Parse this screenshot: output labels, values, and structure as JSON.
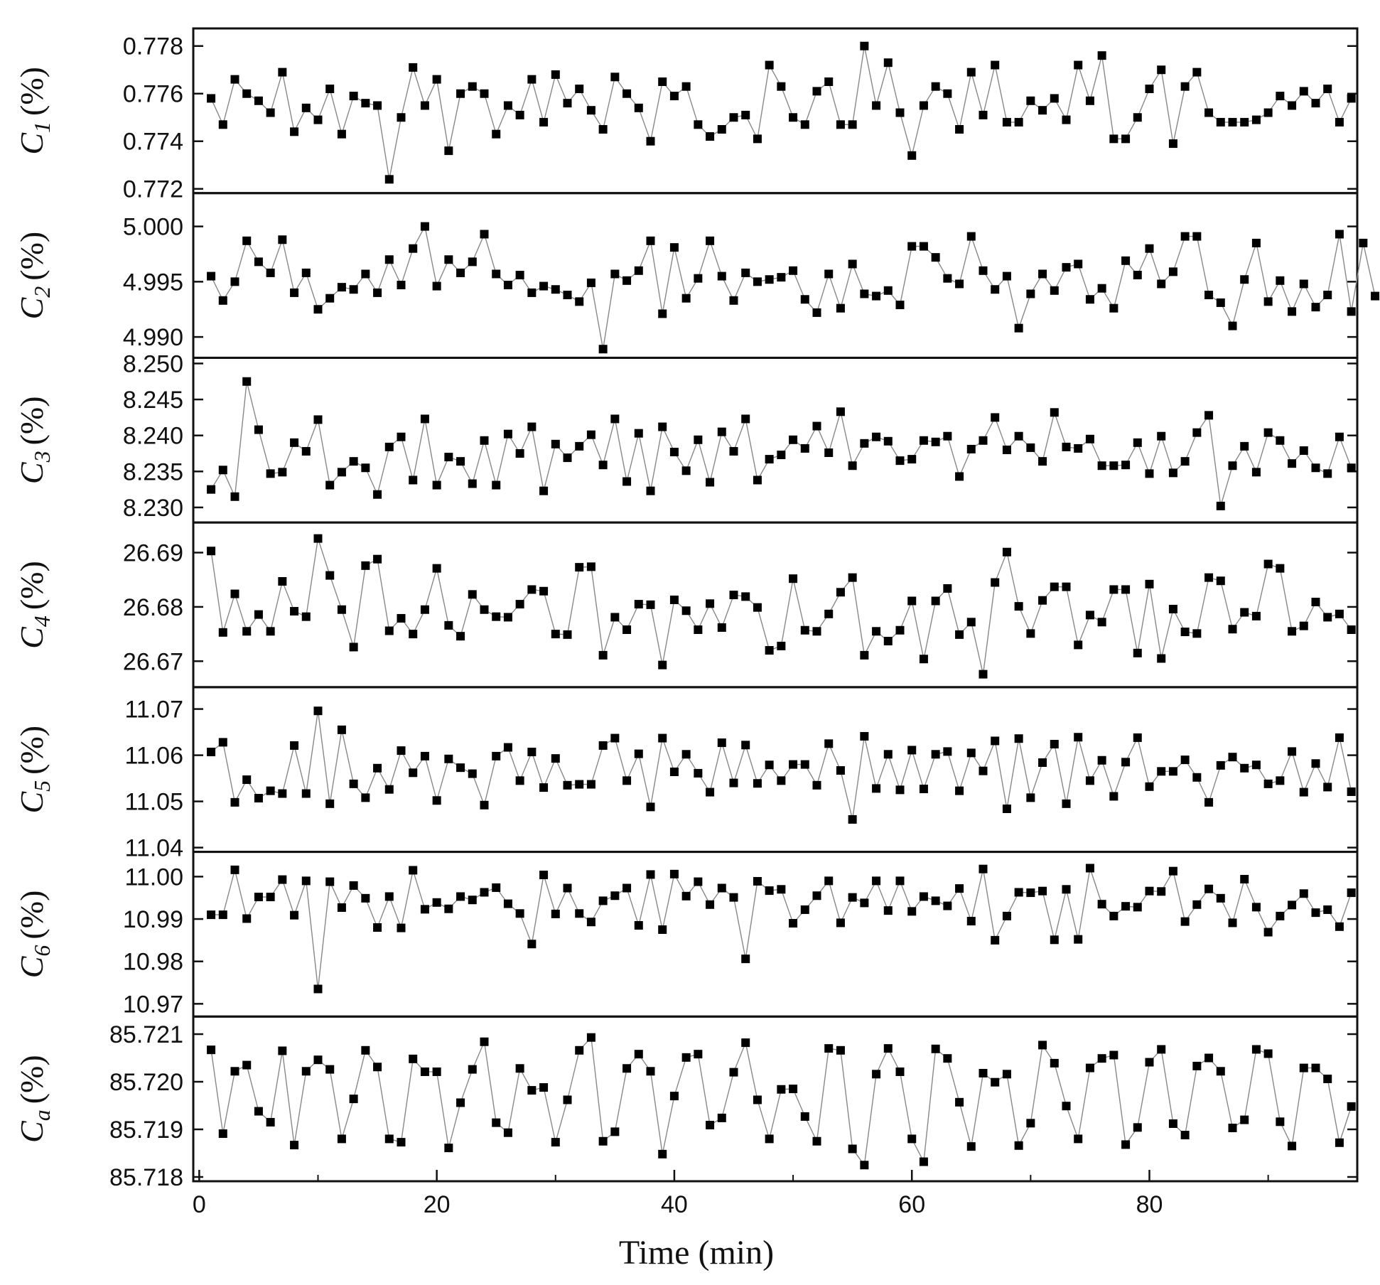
{
  "chart_data": [
    {
      "type": "scatter",
      "ylabel_symbol": "C",
      "ylabel_sub": "1",
      "ylabel_unit": "(%)",
      "ylim": [
        0.772,
        0.7785
      ],
      "yticks": [
        0.772,
        0.774,
        0.776,
        0.778
      ],
      "ytick_labels": [
        "0.772",
        "0.774",
        "0.776",
        "0.778"
      ],
      "y": [
        0.7758,
        0.7747,
        0.7766,
        0.776,
        0.7757,
        0.7752,
        0.7769,
        0.7744,
        0.7754,
        0.7749,
        0.7762,
        0.7743,
        0.7759,
        0.7756,
        0.7755,
        0.7724,
        0.775,
        0.7771,
        0.7755,
        0.7766,
        0.7736,
        0.776,
        0.7763,
        0.776,
        0.7743,
        0.7755,
        0.7751,
        0.7766,
        0.7748,
        0.7768,
        0.7756,
        0.7762,
        0.7753,
        0.7745,
        0.7767,
        0.776,
        0.7754,
        0.774,
        0.7765,
        0.7759,
        0.7763,
        0.7747,
        0.7742,
        0.7745,
        0.775,
        0.7751,
        0.7741,
        0.7772,
        0.7763,
        0.775,
        0.7747,
        0.7761,
        0.7765,
        0.7747,
        0.7747,
        0.778,
        0.7755,
        0.7773,
        0.7752,
        0.7734,
        0.7755,
        0.7763,
        0.776,
        0.7745,
        0.7769,
        0.7751,
        0.7772,
        0.7748,
        0.7748,
        0.7757,
        0.7753,
        0.7758,
        0.7749,
        0.7772,
        0.7757,
        0.7776,
        0.7741,
        0.7741,
        0.775,
        0.7762,
        0.777,
        0.7739,
        0.7763,
        0.7769,
        0.7752,
        0.7748,
        0.7748,
        0.7748,
        0.7749,
        0.7752,
        0.7759,
        0.7755,
        0.7761,
        0.7756,
        0.7762,
        0.7748,
        0.7758
      ]
    },
    {
      "type": "scatter",
      "ylabel_symbol": "C",
      "ylabel_sub": "2",
      "ylabel_unit": "(%)",
      "ylim": [
        4.9885,
        5.0025
      ],
      "yticks": [
        4.99,
        4.995,
        5.0
      ],
      "ytick_labels": [
        "4.990",
        "4.995",
        "5.000"
      ],
      "y": [
        4.9955,
        4.9933,
        4.995,
        4.9987,
        4.9968,
        4.9958,
        4.9988,
        4.994,
        4.9958,
        4.9925,
        4.9935,
        4.9945,
        4.9943,
        4.9957,
        4.994,
        4.997,
        4.9947,
        4.998,
        5.0,
        4.9946,
        4.997,
        4.9958,
        4.9968,
        4.9993,
        4.9957,
        4.9947,
        4.9956,
        4.994,
        4.9946,
        4.9943,
        4.9938,
        4.9932,
        4.9949,
        4.9889,
        4.9957,
        4.9951,
        4.996,
        4.9987,
        4.9921,
        4.9981,
        4.9935,
        4.9953,
        4.9987,
        4.9955,
        4.9933,
        4.9958,
        4.995,
        4.9952,
        4.9954,
        4.996,
        4.9934,
        4.9922,
        4.9957,
        4.9926,
        4.9966,
        4.9939,
        4.9937,
        4.9942,
        4.9929,
        4.9982,
        4.9982,
        4.9972,
        4.9953,
        4.9948,
        4.9991,
        4.996,
        4.9943,
        4.9955,
        4.9908,
        4.9939,
        4.9957,
        4.9942,
        4.9963,
        4.9966,
        4.9934,
        4.9944,
        4.9926,
        4.9969,
        4.9956,
        4.998,
        4.9948,
        4.9959,
        4.9991,
        4.9991,
        4.9938,
        4.9931,
        4.991,
        4.9952,
        4.9985,
        4.9932,
        4.9951,
        4.9923,
        4.9948,
        4.9927,
        4.9938,
        4.9993,
        4.9923,
        4.9985,
        4.9937
      ]
    },
    {
      "type": "scatter",
      "ylabel_symbol": "C",
      "ylabel_sub": "3",
      "ylabel_unit": "(%)",
      "ylim": [
        8.2285,
        8.25
      ],
      "yticks": [
        8.23,
        8.235,
        8.24,
        8.245,
        8.25
      ],
      "ytick_labels": [
        "8.230",
        "8.235",
        "8.240",
        "8.245",
        "8.250"
      ],
      "y": [
        8.2325,
        8.2352,
        8.2315,
        8.2475,
        8.2408,
        8.2347,
        8.2349,
        8.239,
        8.2378,
        8.2422,
        8.2331,
        8.2349,
        8.2364,
        8.2355,
        8.2318,
        8.2384,
        8.2398,
        8.2338,
        8.2423,
        8.2331,
        8.237,
        8.2364,
        8.2333,
        8.2393,
        8.2331,
        8.2402,
        8.2375,
        8.2412,
        8.2323,
        8.2388,
        8.2369,
        8.2385,
        8.2401,
        8.2359,
        8.2423,
        8.2336,
        8.2403,
        8.2323,
        8.2412,
        8.2377,
        8.2351,
        8.2394,
        8.2335,
        8.2405,
        8.2378,
        8.2423,
        8.2338,
        8.2367,
        8.2373,
        8.2394,
        8.2382,
        8.2413,
        8.2376,
        8.2433,
        8.2358,
        8.2389,
        8.2398,
        8.2392,
        8.2365,
        8.2367,
        8.2393,
        8.2391,
        8.2399,
        8.2343,
        8.2381,
        8.2393,
        8.2425,
        8.238,
        8.2399,
        8.2383,
        8.2364,
        8.2432,
        8.2384,
        8.2382,
        8.2395,
        8.2358,
        8.2358,
        8.2359,
        8.239,
        8.2347,
        8.2399,
        8.2348,
        8.2364,
        8.2404,
        8.2428,
        8.2302,
        8.2358,
        8.2385,
        8.2349,
        8.2404,
        8.2393,
        8.2361,
        8.2379,
        8.2355,
        8.2347,
        8.2398,
        8.2355
      ]
    },
    {
      "type": "scatter",
      "ylabel_symbol": "C",
      "ylabel_sub": "4",
      "ylabel_unit": "(%)",
      "ylim": [
        26.666,
        26.6945
      ],
      "yticks": [
        26.67,
        26.68,
        26.69
      ],
      "ytick_labels": [
        "26.67",
        "26.68",
        "26.69"
      ],
      "y": [
        26.6903,
        26.6753,
        26.6824,
        26.6755,
        26.6786,
        26.6755,
        26.6847,
        26.6792,
        26.6782,
        26.6926,
        26.6858,
        26.6795,
        26.6726,
        26.6876,
        26.6888,
        26.6756,
        26.6779,
        26.675,
        26.6795,
        26.6871,
        26.6766,
        26.6746,
        26.6823,
        26.6795,
        26.6782,
        26.6781,
        26.6805,
        26.6832,
        26.6829,
        26.675,
        26.6749,
        26.6873,
        26.6874,
        26.6711,
        26.6781,
        26.6758,
        26.6805,
        26.6804,
        26.6693,
        26.6813,
        26.6793,
        26.6758,
        26.6806,
        26.6762,
        26.6822,
        26.6819,
        26.6799,
        26.672,
        26.6728,
        26.6852,
        26.6757,
        26.6755,
        26.6787,
        26.6827,
        26.6854,
        26.6711,
        26.6755,
        26.6737,
        26.6757,
        26.6811,
        26.6704,
        26.6811,
        26.6834,
        26.6749,
        26.6772,
        26.6676,
        26.6845,
        26.6901,
        26.6801,
        26.6751,
        26.6812,
        26.6837,
        26.6837,
        26.673,
        26.6785,
        26.6772,
        26.6832,
        26.6832,
        26.6715,
        26.6842,
        26.6705,
        26.6796,
        26.6754,
        26.6751,
        26.6854,
        26.6848,
        26.6759,
        26.679,
        26.6783,
        26.6879,
        26.6871,
        26.6755,
        26.6765,
        26.6809,
        26.6781,
        26.6787,
        26.6758
      ]
    },
    {
      "type": "scatter",
      "ylabel_symbol": "C",
      "ylabel_sub": "5",
      "ylabel_unit": "(%)",
      "ylim": [
        11.04,
        11.0735
      ],
      "yticks": [
        11.04,
        11.05,
        11.06,
        11.07
      ],
      "ytick_labels": [
        "11.04",
        "11.05",
        "11.06",
        "11.07"
      ],
      "y": [
        11.0607,
        11.0628,
        11.0498,
        11.0547,
        11.0507,
        11.0523,
        11.0517,
        11.0621,
        11.0517,
        11.0696,
        11.0495,
        11.0655,
        11.0538,
        11.0508,
        11.0572,
        11.0526,
        11.061,
        11.0562,
        11.0598,
        11.0502,
        11.0592,
        11.0573,
        11.056,
        11.0492,
        11.0598,
        11.0617,
        11.0545,
        11.0607,
        11.053,
        11.0593,
        11.0535,
        11.0537,
        11.0537,
        11.0621,
        11.0637,
        11.0545,
        11.0603,
        11.0488,
        11.0637,
        11.0564,
        11.0602,
        11.0561,
        11.052,
        11.0627,
        11.054,
        11.0622,
        11.0539,
        11.0579,
        11.0545,
        11.058,
        11.058,
        11.0535,
        11.0625,
        11.0567,
        11.0461,
        11.0641,
        11.0528,
        11.0602,
        11.0525,
        11.0611,
        11.0527,
        11.0602,
        11.0608,
        11.0523,
        11.0605,
        11.0566,
        11.0631,
        11.0484,
        11.0636,
        11.0508,
        11.0584,
        11.0624,
        11.0495,
        11.0639,
        11.0545,
        11.0589,
        11.0511,
        11.0585,
        11.0638,
        11.0532,
        11.0565,
        11.0565,
        11.059,
        11.0552,
        11.0498,
        11.0578,
        11.0596,
        11.0572,
        11.0579,
        11.0538,
        11.0545,
        11.0608,
        11.052,
        11.0582,
        11.0531,
        11.0638,
        11.0521
      ]
    },
    {
      "type": "scatter",
      "ylabel_symbol": "C",
      "ylabel_sub": "6",
      "ylabel_unit": "(%)",
      "ylim": [
        10.968,
        11.0045
      ],
      "yticks": [
        10.97,
        10.98,
        10.99,
        11.0
      ],
      "ytick_labels": [
        "10.97",
        "10.98",
        "10.99",
        "11.00"
      ],
      "y": [
        10.991,
        10.991,
        11.0016,
        10.9901,
        10.9952,
        10.9952,
        10.9993,
        10.9909,
        10.999,
        10.9735,
        10.9988,
        10.9927,
        10.9979,
        10.9949,
        10.988,
        10.9953,
        10.9879,
        11.0015,
        10.9923,
        10.9939,
        10.9924,
        10.9953,
        10.9945,
        10.9963,
        10.9974,
        10.9936,
        10.9913,
        10.9841,
        11.0004,
        10.9912,
        10.9973,
        10.9913,
        10.9893,
        10.9943,
        10.9955,
        10.9973,
        10.9885,
        11.0005,
        10.9875,
        11.0006,
        10.9954,
        10.9988,
        10.9934,
        10.9973,
        10.9951,
        10.9806,
        10.9989,
        10.9967,
        10.997,
        10.989,
        10.9922,
        10.9955,
        10.999,
        10.9891,
        10.9951,
        10.9938,
        10.999,
        10.992,
        10.999,
        10.9918,
        10.9953,
        10.9943,
        10.9931,
        10.9972,
        10.9895,
        11.0018,
        10.985,
        10.9907,
        10.9963,
        10.9962,
        10.9966,
        10.9851,
        10.997,
        10.9852,
        11.002,
        10.9935,
        10.9907,
        10.993,
        10.9928,
        10.9966,
        10.9965,
        11.0013,
        10.9894,
        10.9934,
        10.9971,
        10.9949,
        10.9891,
        10.9994,
        10.9928,
        10.9869,
        10.9907,
        10.9933,
        10.996,
        10.9915,
        10.9922,
        10.9882,
        10.9962
      ]
    },
    {
      "type": "scatter",
      "ylabel_symbol": "C",
      "ylabel_sub": "a",
      "ylabel_unit": "(%)",
      "ylim": [
        85.718,
        85.72125
      ],
      "yticks": [
        85.718,
        85.719,
        85.72,
        85.721
      ],
      "ytick_labels": [
        "85.718",
        "85.719",
        "85.720",
        "85.721"
      ],
      "y": [
        85.72067,
        85.71891,
        85.72022,
        85.72035,
        85.71938,
        85.71915,
        85.72065,
        85.71867,
        85.72022,
        85.72046,
        85.72026,
        85.7188,
        85.71964,
        85.72066,
        85.72031,
        85.7188,
        85.71873,
        85.72048,
        85.72021,
        85.72021,
        85.71861,
        85.71956,
        85.72026,
        85.72084,
        85.71914,
        85.71893,
        85.72028,
        85.71982,
        85.71988,
        85.71873,
        85.71962,
        85.72066,
        85.72093,
        85.71875,
        85.71895,
        85.72028,
        85.72058,
        85.72022,
        85.71848,
        85.7197,
        85.72051,
        85.72058,
        85.71909,
        85.71924,
        85.7202,
        85.72082,
        85.71962,
        85.7188,
        85.71984,
        85.71985,
        85.71927,
        85.71875,
        85.7207,
        85.72066,
        85.71859,
        85.71825,
        85.72016,
        85.7207,
        85.72021,
        85.7188,
        85.71832,
        85.72069,
        85.72049,
        85.71957,
        85.71864,
        85.72018,
        85.71999,
        85.72016,
        85.71866,
        85.71913,
        85.72077,
        85.72039,
        85.71949,
        85.7188,
        85.72029,
        85.72049,
        85.72056,
        85.71868,
        85.71904,
        85.72041,
        85.72068,
        85.71912,
        85.71888,
        85.72033,
        85.7205,
        85.72022,
        85.71903,
        85.7192,
        85.72068,
        85.72059,
        85.71916,
        85.71865,
        85.72029,
        85.72029,
        85.72006,
        85.71872,
        85.71948
      ]
    }
  ],
  "x_axis": {
    "label": "Time (min)",
    "xlim": [
      -0.5,
      97.5
    ],
    "ticks": [
      0,
      20,
      40,
      60,
      80
    ],
    "tick_labels": [
      "0",
      "20",
      "40",
      "60",
      "80"
    ],
    "x_start": 1,
    "x_step": 1
  },
  "style": {
    "marker": "filled-square",
    "marker_color": "#000000",
    "line_color": "#888888",
    "axis_color": "#111111"
  }
}
